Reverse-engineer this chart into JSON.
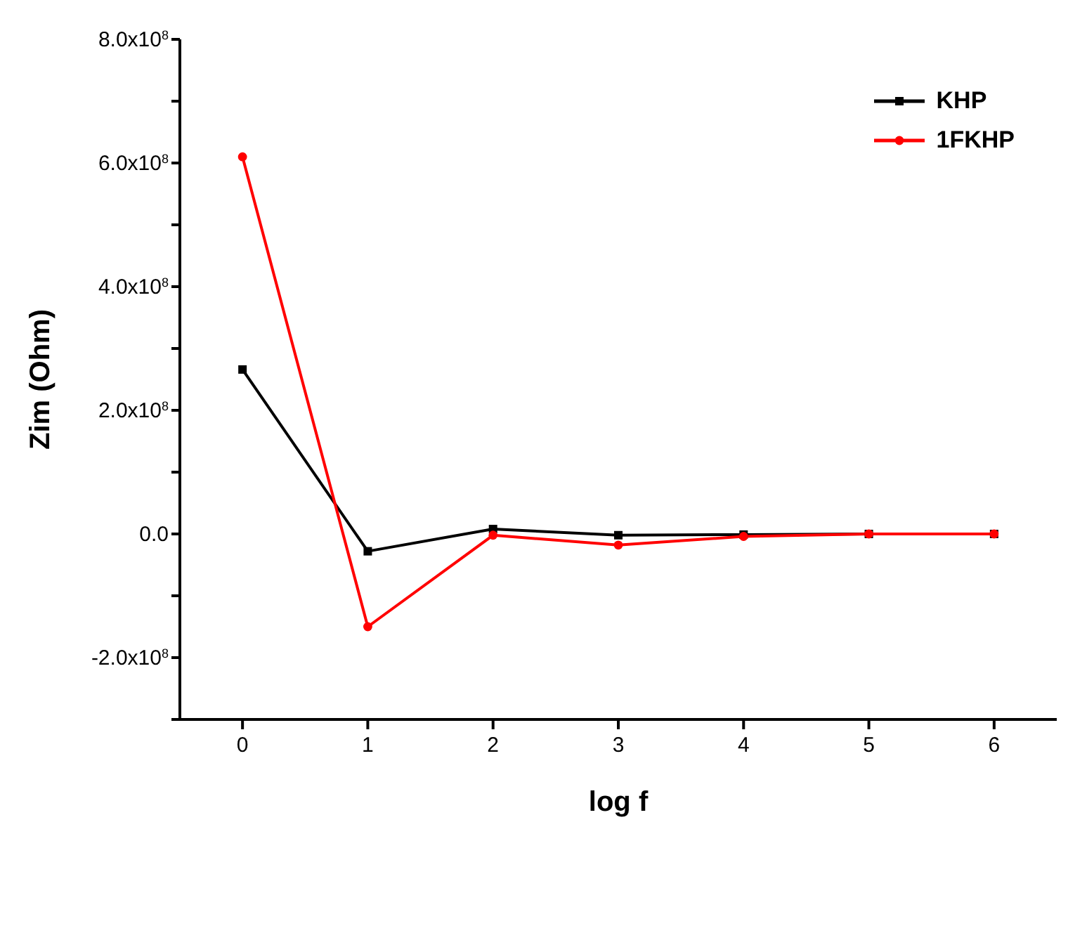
{
  "chart_data": {
    "type": "line",
    "xlabel": "log f",
    "ylabel": "Zim (Ohm)",
    "x": [
      0,
      1,
      2,
      3,
      4,
      5,
      6
    ],
    "series": [
      {
        "name": "KHP",
        "color": "#000000",
        "marker": "square",
        "values": [
          266000000,
          -28000000,
          8000000,
          -2000000,
          -1000000,
          0,
          0
        ]
      },
      {
        "name": "1FKHP",
        "color": "#ff0000",
        "marker": "circle",
        "values": [
          610000000,
          -150000000,
          -2000000,
          -18000000,
          -4000000,
          0,
          0
        ]
      }
    ],
    "xlim": [
      -0.5,
      6.5
    ],
    "xticks": [
      0,
      1,
      2,
      3,
      4,
      5,
      6
    ],
    "ylim": [
      -300000000,
      800000000
    ],
    "yticks": [
      {
        "value": -300000000,
        "label": null
      },
      {
        "value": -200000000,
        "label": "-2.0x10$^{8}$"
      },
      {
        "value": -100000000,
        "label": null
      },
      {
        "value": 0,
        "label": "0.0"
      },
      {
        "value": 100000000,
        "label": null
      },
      {
        "value": 200000000,
        "label": "2.0x10$^{8}$"
      },
      {
        "value": 300000000,
        "label": null
      },
      {
        "value": 400000000,
        "label": "4.0x10$^{8}$"
      },
      {
        "value": 500000000,
        "label": null
      },
      {
        "value": 600000000,
        "label": "6.0x10$^{8}$"
      },
      {
        "value": 700000000,
        "label": null
      },
      {
        "value": 800000000,
        "label": "8.0x10$^{8}$"
      }
    ],
    "legend": "top right",
    "grid": false,
    "line_style": "solid"
  }
}
